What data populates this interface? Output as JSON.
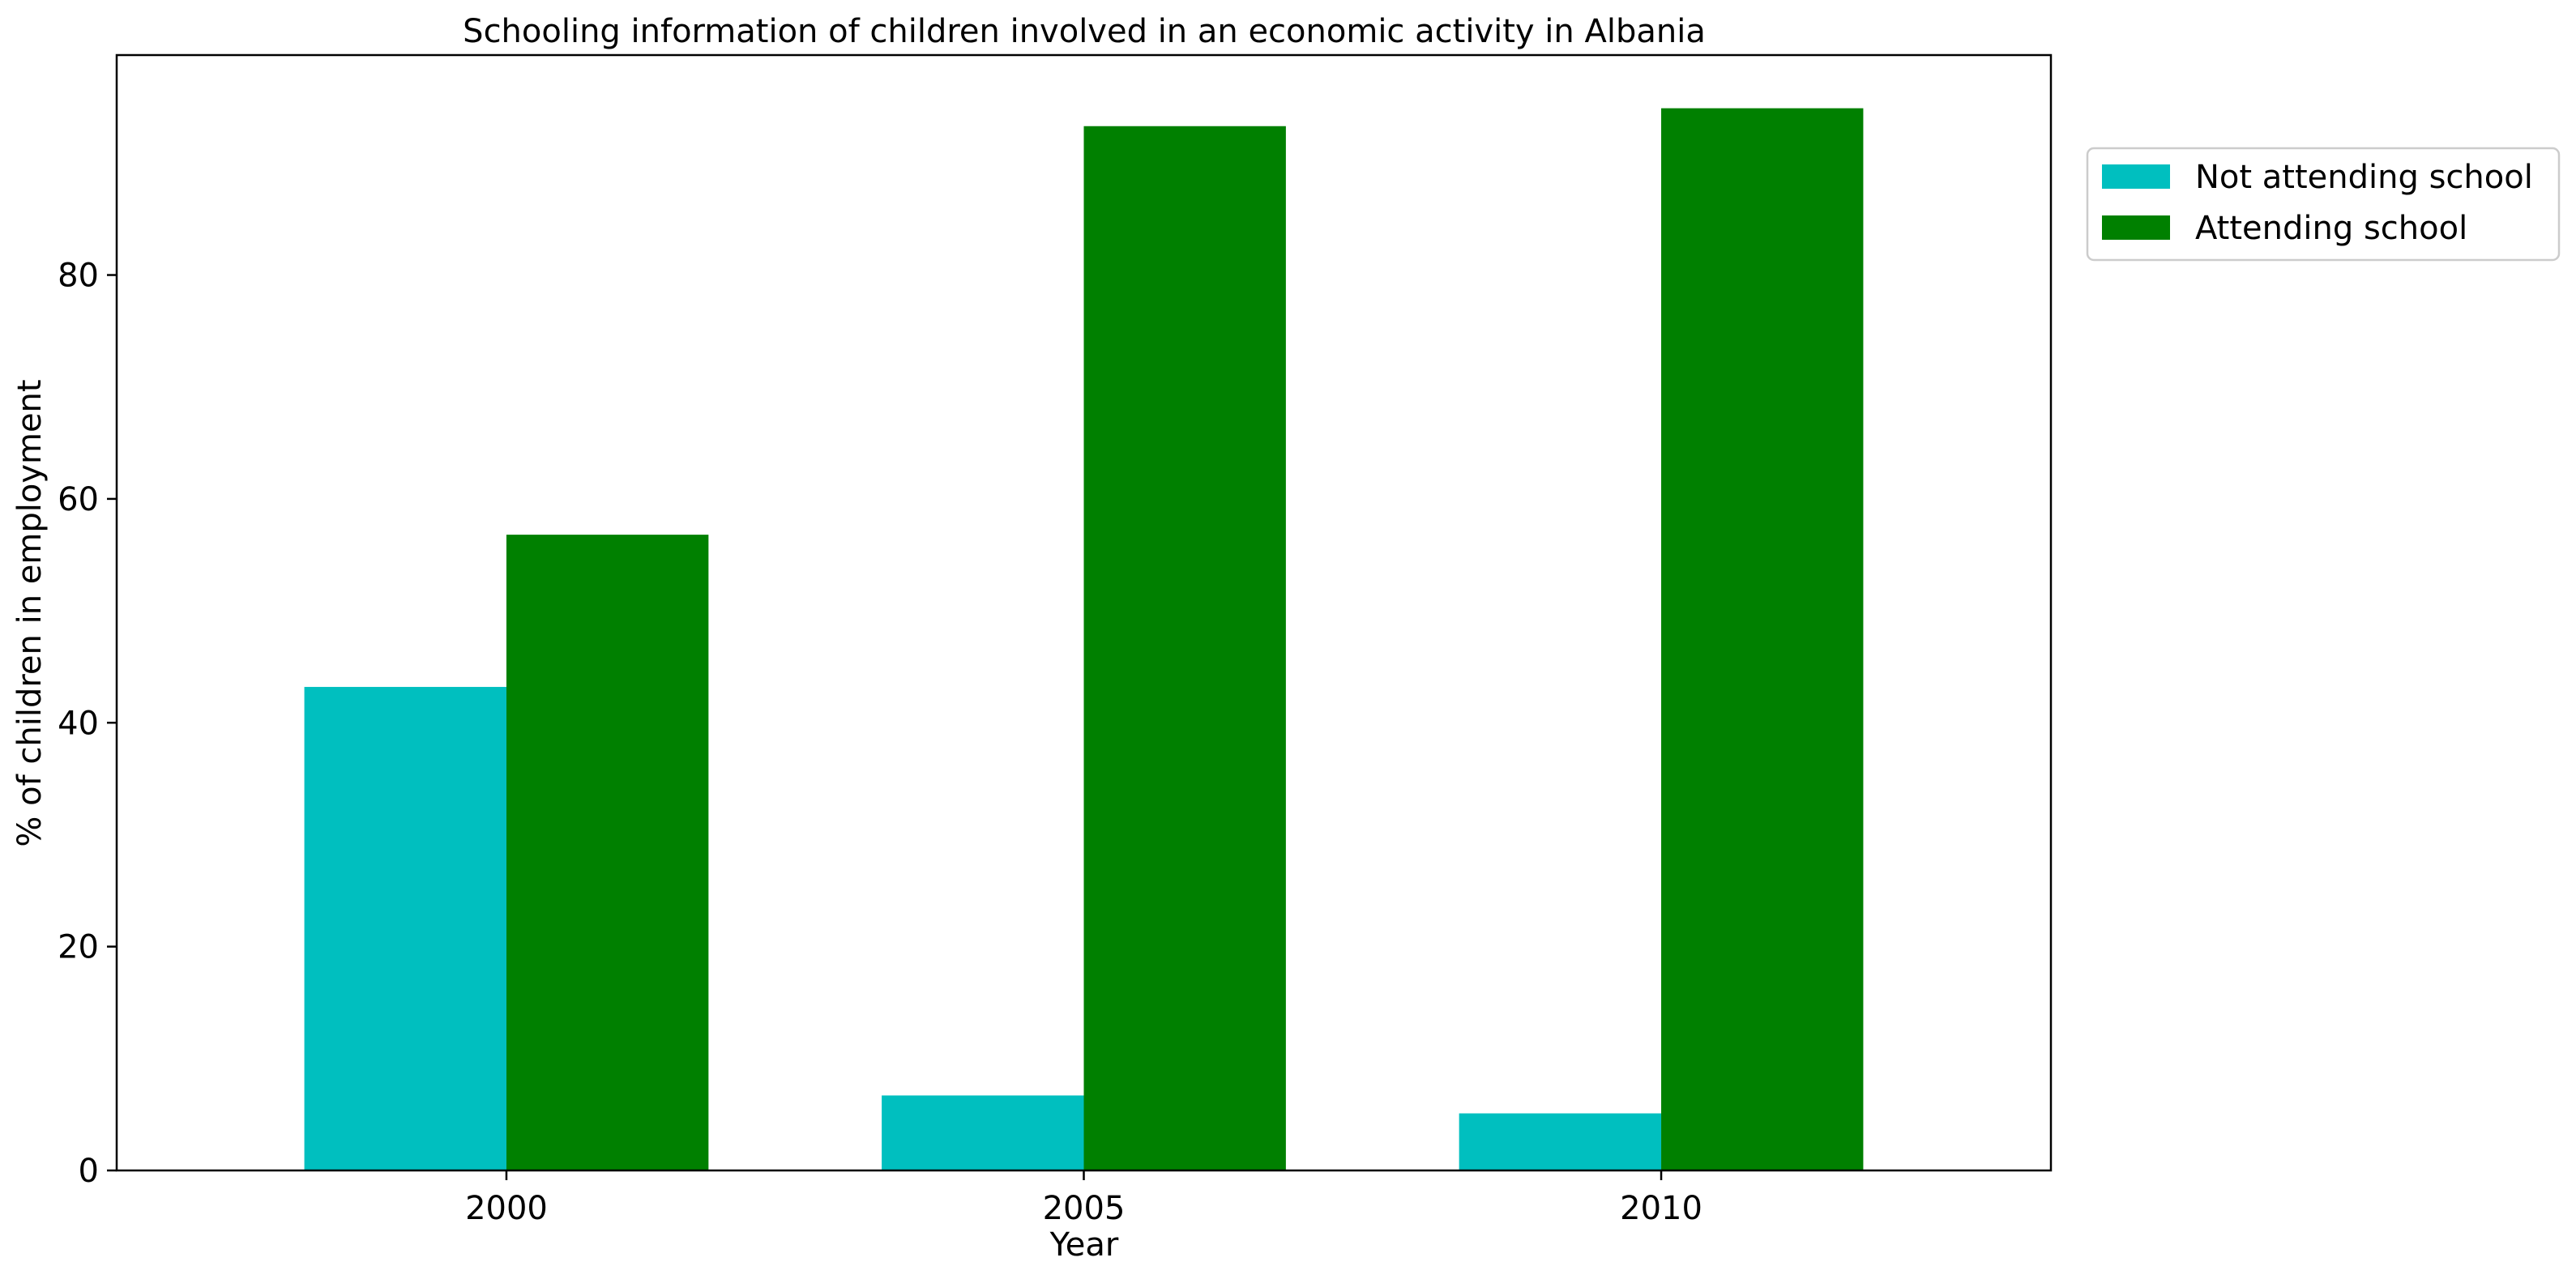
{
  "chart_data": {
    "type": "bar",
    "title": "Schooling information of children involved in an economic activity in Albania",
    "xlabel": "Year",
    "ylabel": "% of children in employment",
    "categories": [
      "2000",
      "2005",
      "2010"
    ],
    "series": [
      {
        "name": "Not attending school",
        "values": [
          43.2,
          6.7,
          5.1
        ],
        "color": "#00bfbf"
      },
      {
        "name": "Attending school",
        "values": [
          56.8,
          93.3,
          94.9
        ],
        "color": "#008000"
      }
    ],
    "ylim": [
      0,
      99.65
    ],
    "yticks": [
      0,
      20,
      40,
      60,
      80
    ],
    "grid": false,
    "legend_position": "outside-right-top"
  }
}
